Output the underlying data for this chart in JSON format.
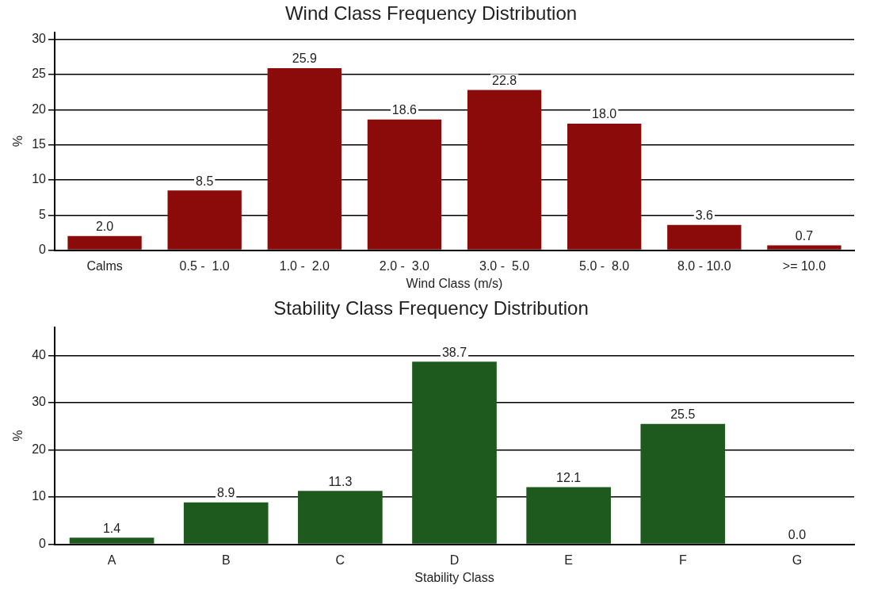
{
  "chart_data": [
    {
      "type": "bar",
      "title": "Wind Class Frequency Distribution",
      "xlabel": "Wind Class (m/s)",
      "ylabel": "%",
      "categories": [
        "Calms",
        "0.5 -  1.0",
        "1.0 -  2.0",
        "2.0 -  3.0",
        "3.0 -  5.0",
        "5.0 -  8.0",
        "8.0 - 10.0",
        ">= 10.0"
      ],
      "values": [
        2.0,
        8.5,
        25.9,
        18.6,
        22.8,
        18.0,
        3.6,
        0.7
      ],
      "value_labels": [
        "2.0",
        "8.5",
        "25.9",
        "18.6",
        "22.8",
        "18.0",
        "3.6",
        "0.7"
      ],
      "color": "#8b0a0a",
      "ylim": [
        0,
        31
      ],
      "yticks": [
        0,
        5,
        10,
        15,
        20,
        25,
        30
      ],
      "grid": "y"
    },
    {
      "type": "bar",
      "title": "Stability Class Frequency Distribution",
      "xlabel": "Stability Class",
      "ylabel": "%",
      "categories": [
        "A",
        "B",
        "C",
        "D",
        "E",
        "F",
        "G"
      ],
      "values": [
        1.4,
        8.9,
        11.3,
        38.7,
        12.1,
        25.5,
        0.0
      ],
      "value_labels": [
        "1.4",
        "8.9",
        "11.3",
        "38.7",
        "12.1",
        "25.5",
        "0.0"
      ],
      "color": "#1e5a1e",
      "ylim": [
        0,
        46
      ],
      "yticks": [
        0,
        10,
        20,
        30,
        40
      ],
      "grid": "y"
    }
  ]
}
